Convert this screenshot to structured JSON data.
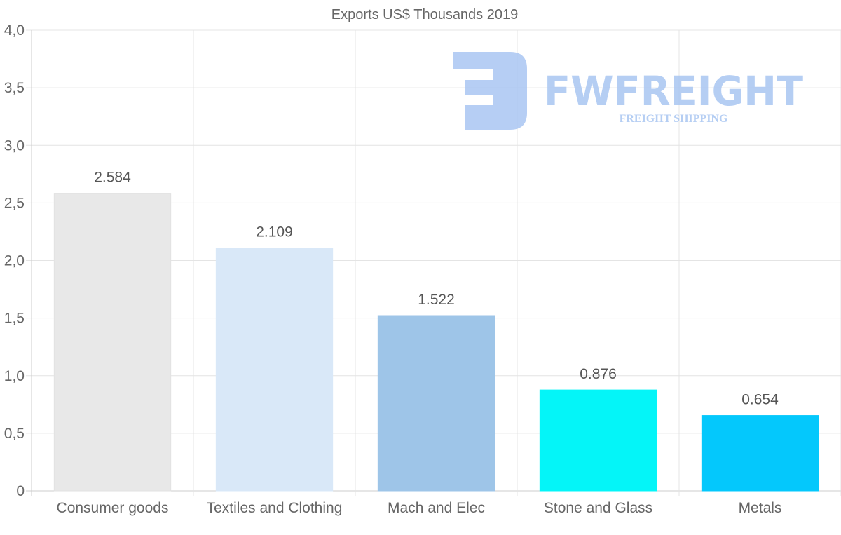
{
  "chart_data": {
    "type": "bar",
    "title": "Exports US$ Thousands 2019",
    "categories": [
      "Consumer goods",
      "Textiles and Clothing",
      "Mach and Elec",
      "Stone and Glass",
      "Metals"
    ],
    "values": [
      2.584,
      2.109,
      1.522,
      0.876,
      0.654
    ],
    "data_labels": [
      "2.584",
      "2.109",
      "1.522",
      "0.876",
      "0.654"
    ],
    "colors": [
      "#e8e8e8",
      "#d9e8f8",
      "#9ec5e8",
      "#04f5f8",
      "#04c8fc"
    ],
    "ylim": [
      0,
      4
    ],
    "yticks": [
      0,
      0.5,
      1,
      1.5,
      2,
      2.5,
      3,
      3.5,
      4
    ],
    "ytick_labels": [
      "0",
      "0,5",
      "1,0",
      "1,5",
      "2,0",
      "2,5",
      "3,0",
      "3,5",
      "4,0"
    ],
    "xlabel": "",
    "ylabel": "",
    "grid": true,
    "legend": "none"
  },
  "watermark": {
    "brand": "FWFREIGHT",
    "tagline": "FREIGHT SHIPPING",
    "color": "#a9c6f2"
  }
}
